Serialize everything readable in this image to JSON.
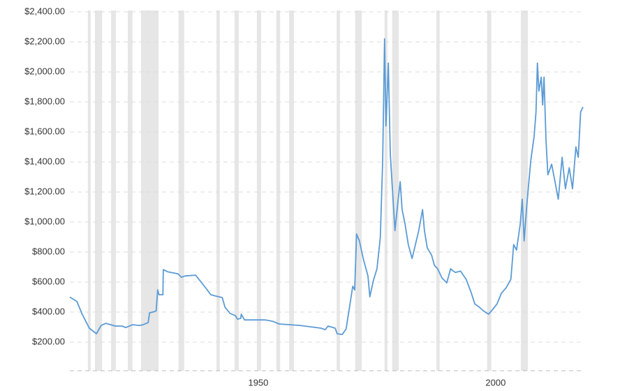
{
  "chart_data": {
    "type": "line",
    "x": [
      1910.3,
      1911.8,
      1912.9,
      1914.4,
      1915.9,
      1916.9,
      1917.9,
      1919.9,
      1921.3,
      1922.1,
      1923.5,
      1925.0,
      1925.7,
      1926.8,
      1927.1,
      1928.2,
      1928.5,
      1928.8,
      1929.1,
      1929.9,
      1930.0,
      1930.9,
      1933.1,
      1933.8,
      1934.6,
      1936.8,
      1937.5,
      1939.0,
      1940.0,
      1941.2,
      1942.4,
      1943.0,
      1944.1,
      1945.2,
      1945.6,
      1946.3,
      1946.4,
      1947.1,
      1948.5,
      1951.5,
      1953.0,
      1954.4,
      1958.8,
      1963.2,
      1964.1,
      1964.7,
      1966.2,
      1966.6,
      1967.7,
      1968.5,
      1969.1,
      1969.9,
      1970.3,
      1970.7,
      1971.3,
      1972.1,
      1973.1,
      1973.5,
      1974.3,
      1975.0,
      1975.7,
      1976.2,
      1976.6,
      1976.9,
      1977.4,
      1977.8,
      1978.2,
      1978.8,
      1979.4,
      1979.9,
      1980.3,
      1980.9,
      1981.6,
      1982.4,
      1983.1,
      1983.8,
      1984.6,
      1985.0,
      1985.6,
      1986.5,
      1987.1,
      1987.8,
      1988.7,
      1989.7,
      1990.5,
      1991.5,
      1992.6,
      1993.8,
      1994.9,
      1995.6,
      1996.6,
      1997.4,
      1998.5,
      1999.4,
      2000.3,
      2001.2,
      2002.2,
      2003.2,
      2003.8,
      2004.4,
      2005.2,
      2005.6,
      2006.0,
      2006.6,
      2007.4,
      2008.1,
      2008.5,
      2008.8,
      2009.1,
      2009.6,
      2009.9,
      2010.2,
      2010.6,
      2011.0,
      2011.8,
      2012.5,
      2013.2,
      2014.0,
      2014.7,
      2015.5,
      2016.2,
      2016.9,
      2017.4,
      2017.9,
      2018.4
    ],
    "series": [
      {
        "color": "#5b9bd5",
        "values": [
          500,
          470,
          386,
          293,
          256,
          311,
          325,
          307,
          307,
          297,
          316,
          311,
          316,
          330,
          395,
          404,
          409,
          548,
          516,
          516,
          683,
          669,
          655,
          632,
          641,
          646,
          618,
          558,
          516,
          506,
          497,
          432,
          390,
          376,
          353,
          358,
          386,
          348,
          348,
          348,
          339,
          321,
          311,
          293,
          283,
          307,
          293,
          256,
          251,
          288,
          409,
          572,
          548,
          920,
          874,
          757,
          641,
          502,
          618,
          688,
          897,
          1408,
          2221,
          1640,
          2059,
          1454,
          1245,
          943,
          1129,
          1269,
          1083,
          990,
          850,
          757,
          850,
          943,
          1083,
          943,
          827,
          780,
          711,
          688,
          627,
          595,
          688,
          664,
          673,
          618,
          525,
          455,
          432,
          409,
          386,
          418,
          455,
          525,
          562,
          618,
          850,
          813,
          990,
          1152,
          874,
          1129,
          1408,
          1571,
          1733,
          2059,
          1872,
          1965,
          1780,
          1965,
          1547,
          1315,
          1385,
          1269,
          1152,
          1431,
          1222,
          1362,
          1222,
          1501,
          1431,
          1733,
          1766
        ]
      }
    ],
    "recessions": [
      [
        1914.1,
        1914.7
      ],
      [
        1915.6,
        1917.1
      ],
      [
        1919.0,
        1920.0
      ],
      [
        1922.5,
        1923.5
      ],
      [
        1925.3,
        1929.0
      ],
      [
        1933.2,
        1934.4
      ],
      [
        1941.2,
        1941.9
      ],
      [
        1945.0,
        1945.9
      ],
      [
        1949.7,
        1950.6
      ],
      [
        1953.8,
        1954.6
      ],
      [
        1956.5,
        1957.5
      ],
      [
        1966.5,
        1967.2
      ],
      [
        1970.4,
        1971.8
      ],
      [
        1976.6,
        1977.2
      ],
      [
        1978.2,
        1979.6
      ],
      [
        1987.5,
        1988.2
      ],
      [
        1998.2,
        1999.1
      ],
      [
        2005.3,
        2006.8
      ]
    ],
    "recession_color": "#e6e6e6",
    "xlim": [
      1910.3,
      2018.4
    ],
    "xticks": [
      1950,
      2000
    ],
    "ylim": [
      0,
      2400
    ],
    "yticks": [
      {
        "value": 200,
        "label": "$200.00"
      },
      {
        "value": 400,
        "label": "$400.00"
      },
      {
        "value": 600,
        "label": "$600.00"
      },
      {
        "value": 800,
        "label": "$800.00"
      },
      {
        "value": 1000,
        "label": "$1,000.00"
      },
      {
        "value": 1200,
        "label": "$1,200.00"
      },
      {
        "value": 1400,
        "label": "$1,400.00"
      },
      {
        "value": 1600,
        "label": "$1,600.00"
      },
      {
        "value": 1800,
        "label": "$1,800.00"
      },
      {
        "value": 2000,
        "label": "$2,000.00"
      },
      {
        "value": 2200,
        "label": "$2,200.00"
      },
      {
        "value": 2400,
        "label": "$2,400.00"
      }
    ],
    "grid": true
  }
}
